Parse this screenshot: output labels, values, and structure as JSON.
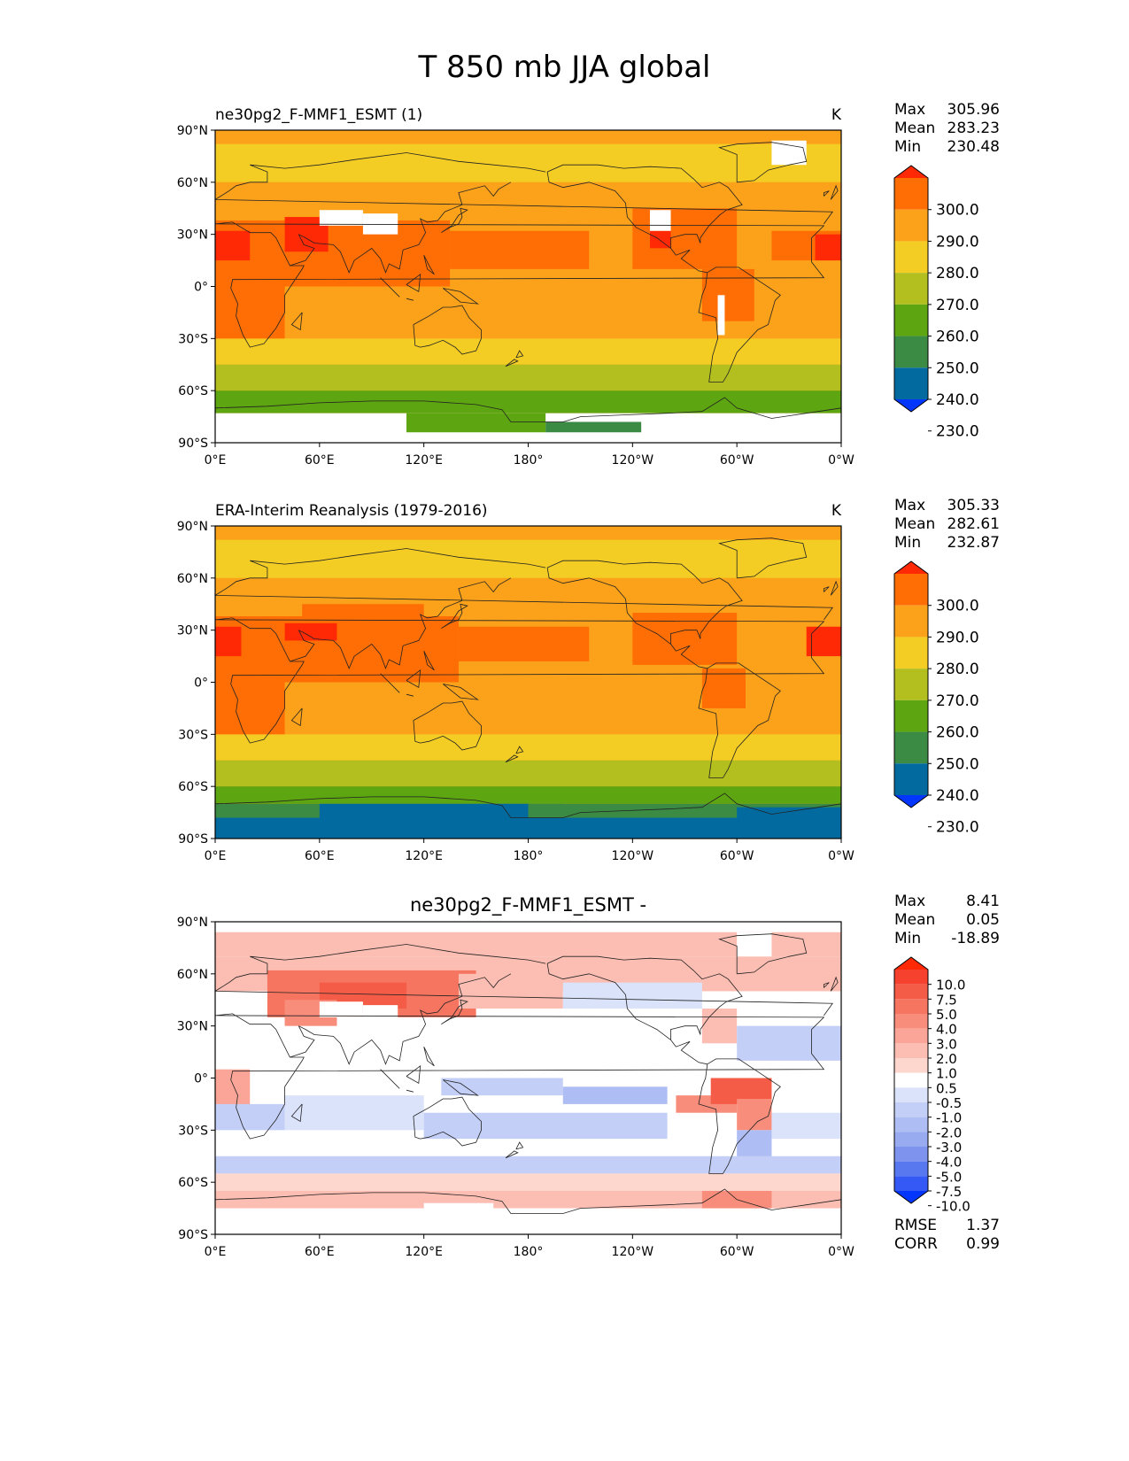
{
  "title": "T 850 mb JJA global",
  "lat_ticks": [
    "90°N",
    "60°N",
    "30°N",
    "0°",
    "30°S",
    "60°S",
    "90°S"
  ],
  "lon_ticks": [
    "0°E",
    "60°E",
    "120°E",
    "180°",
    "120°W",
    "60°W",
    "0°W"
  ],
  "panels": [
    {
      "id": "model",
      "left_title": "ne30pg2_F-MMF1_ESMT (1)",
      "center_title": "",
      "units": "K",
      "stats": [
        {
          "label": "Max",
          "value": "305.96"
        },
        {
          "label": "Mean",
          "value": "283.23"
        },
        {
          "label": "Min",
          "value": "230.48"
        }
      ],
      "colorbar": {
        "levels": [
          "300.0",
          "290.0",
          "280.0",
          "270.0",
          "260.0",
          "250.0",
          "240.0",
          "230.0"
        ],
        "colors": [
          "#ff2a05",
          "#ff6e05",
          "#fba21a",
          "#f3cd24",
          "#b2bf1f",
          "#5da511",
          "#3b8b45",
          "#036aa0",
          "#0236fd"
        ]
      },
      "footer": []
    },
    {
      "id": "obs",
      "left_title": "ERA-Interim Reanalysis (1979-2016)",
      "center_title": "",
      "units": "K",
      "stats": [
        {
          "label": "Max",
          "value": "305.33"
        },
        {
          "label": "Mean",
          "value": "282.61"
        },
        {
          "label": "Min",
          "value": "232.87"
        }
      ],
      "colorbar": {
        "levels": [
          "300.0",
          "290.0",
          "280.0",
          "270.0",
          "260.0",
          "250.0",
          "240.0",
          "230.0"
        ],
        "colors": [
          "#ff2a05",
          "#ff6e05",
          "#fba21a",
          "#f3cd24",
          "#b2bf1f",
          "#5da511",
          "#3b8b45",
          "#036aa0",
          "#0236fd"
        ]
      },
      "footer": []
    },
    {
      "id": "diff",
      "left_title": "",
      "center_title": "ne30pg2_F-MMF1_ESMT -",
      "units": "",
      "stats": [
        {
          "label": "Max",
          "value": "8.41"
        },
        {
          "label": "Mean",
          "value": "0.05"
        },
        {
          "label": "Min",
          "value": "-18.89"
        }
      ],
      "colorbar": {
        "levels": [
          "10.0",
          "7.5",
          "5.0",
          "4.0",
          "3.0",
          "2.0",
          "1.0",
          "0.5",
          "-0.5",
          "-1.0",
          "-2.0",
          "-3.0",
          "-4.0",
          "-5.0",
          "-7.5",
          "-10.0"
        ],
        "colors": [
          "#ff2a05",
          "#f6412e",
          "#f55c47",
          "#f67560",
          "#f88d7b",
          "#faa597",
          "#fcbdb2",
          "#fdd6cd",
          "#ffffff",
          "#dbe3fb",
          "#c4cff7",
          "#aebdf3",
          "#98aaf0",
          "#7d93ee",
          "#5878f0",
          "#3459f5",
          "#0236fd"
        ]
      },
      "footer": [
        {
          "label": "RMSE",
          "value": "1.37"
        },
        {
          "label": "CORR",
          "value": "0.99"
        }
      ]
    }
  ]
}
